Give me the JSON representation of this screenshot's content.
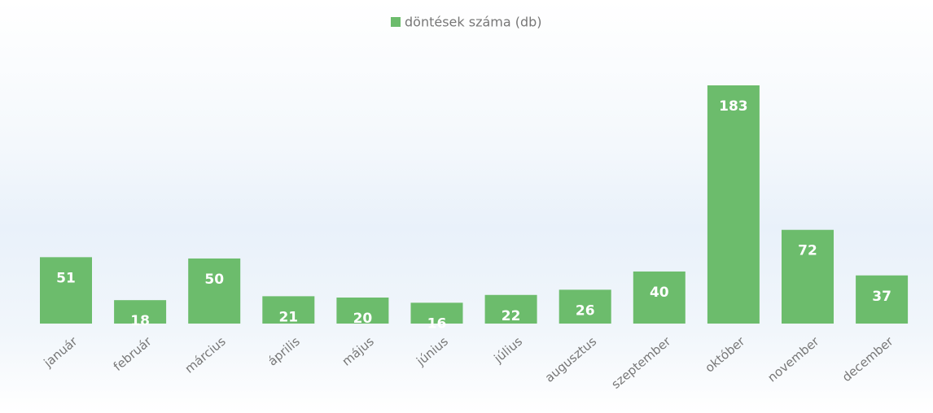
{
  "chart_data": {
    "type": "bar",
    "series": [
      {
        "name": "döntések száma (db)",
        "color": "#6cbc6c",
        "values": [
          51,
          18,
          50,
          21,
          20,
          16,
          22,
          26,
          40,
          183,
          72,
          37
        ]
      }
    ],
    "categories": [
      "január",
      "február",
      "március",
      "április",
      "május",
      "június",
      "július",
      "augusztus",
      "szeptember",
      "október",
      "november",
      "december"
    ],
    "legend": "top"
  }
}
